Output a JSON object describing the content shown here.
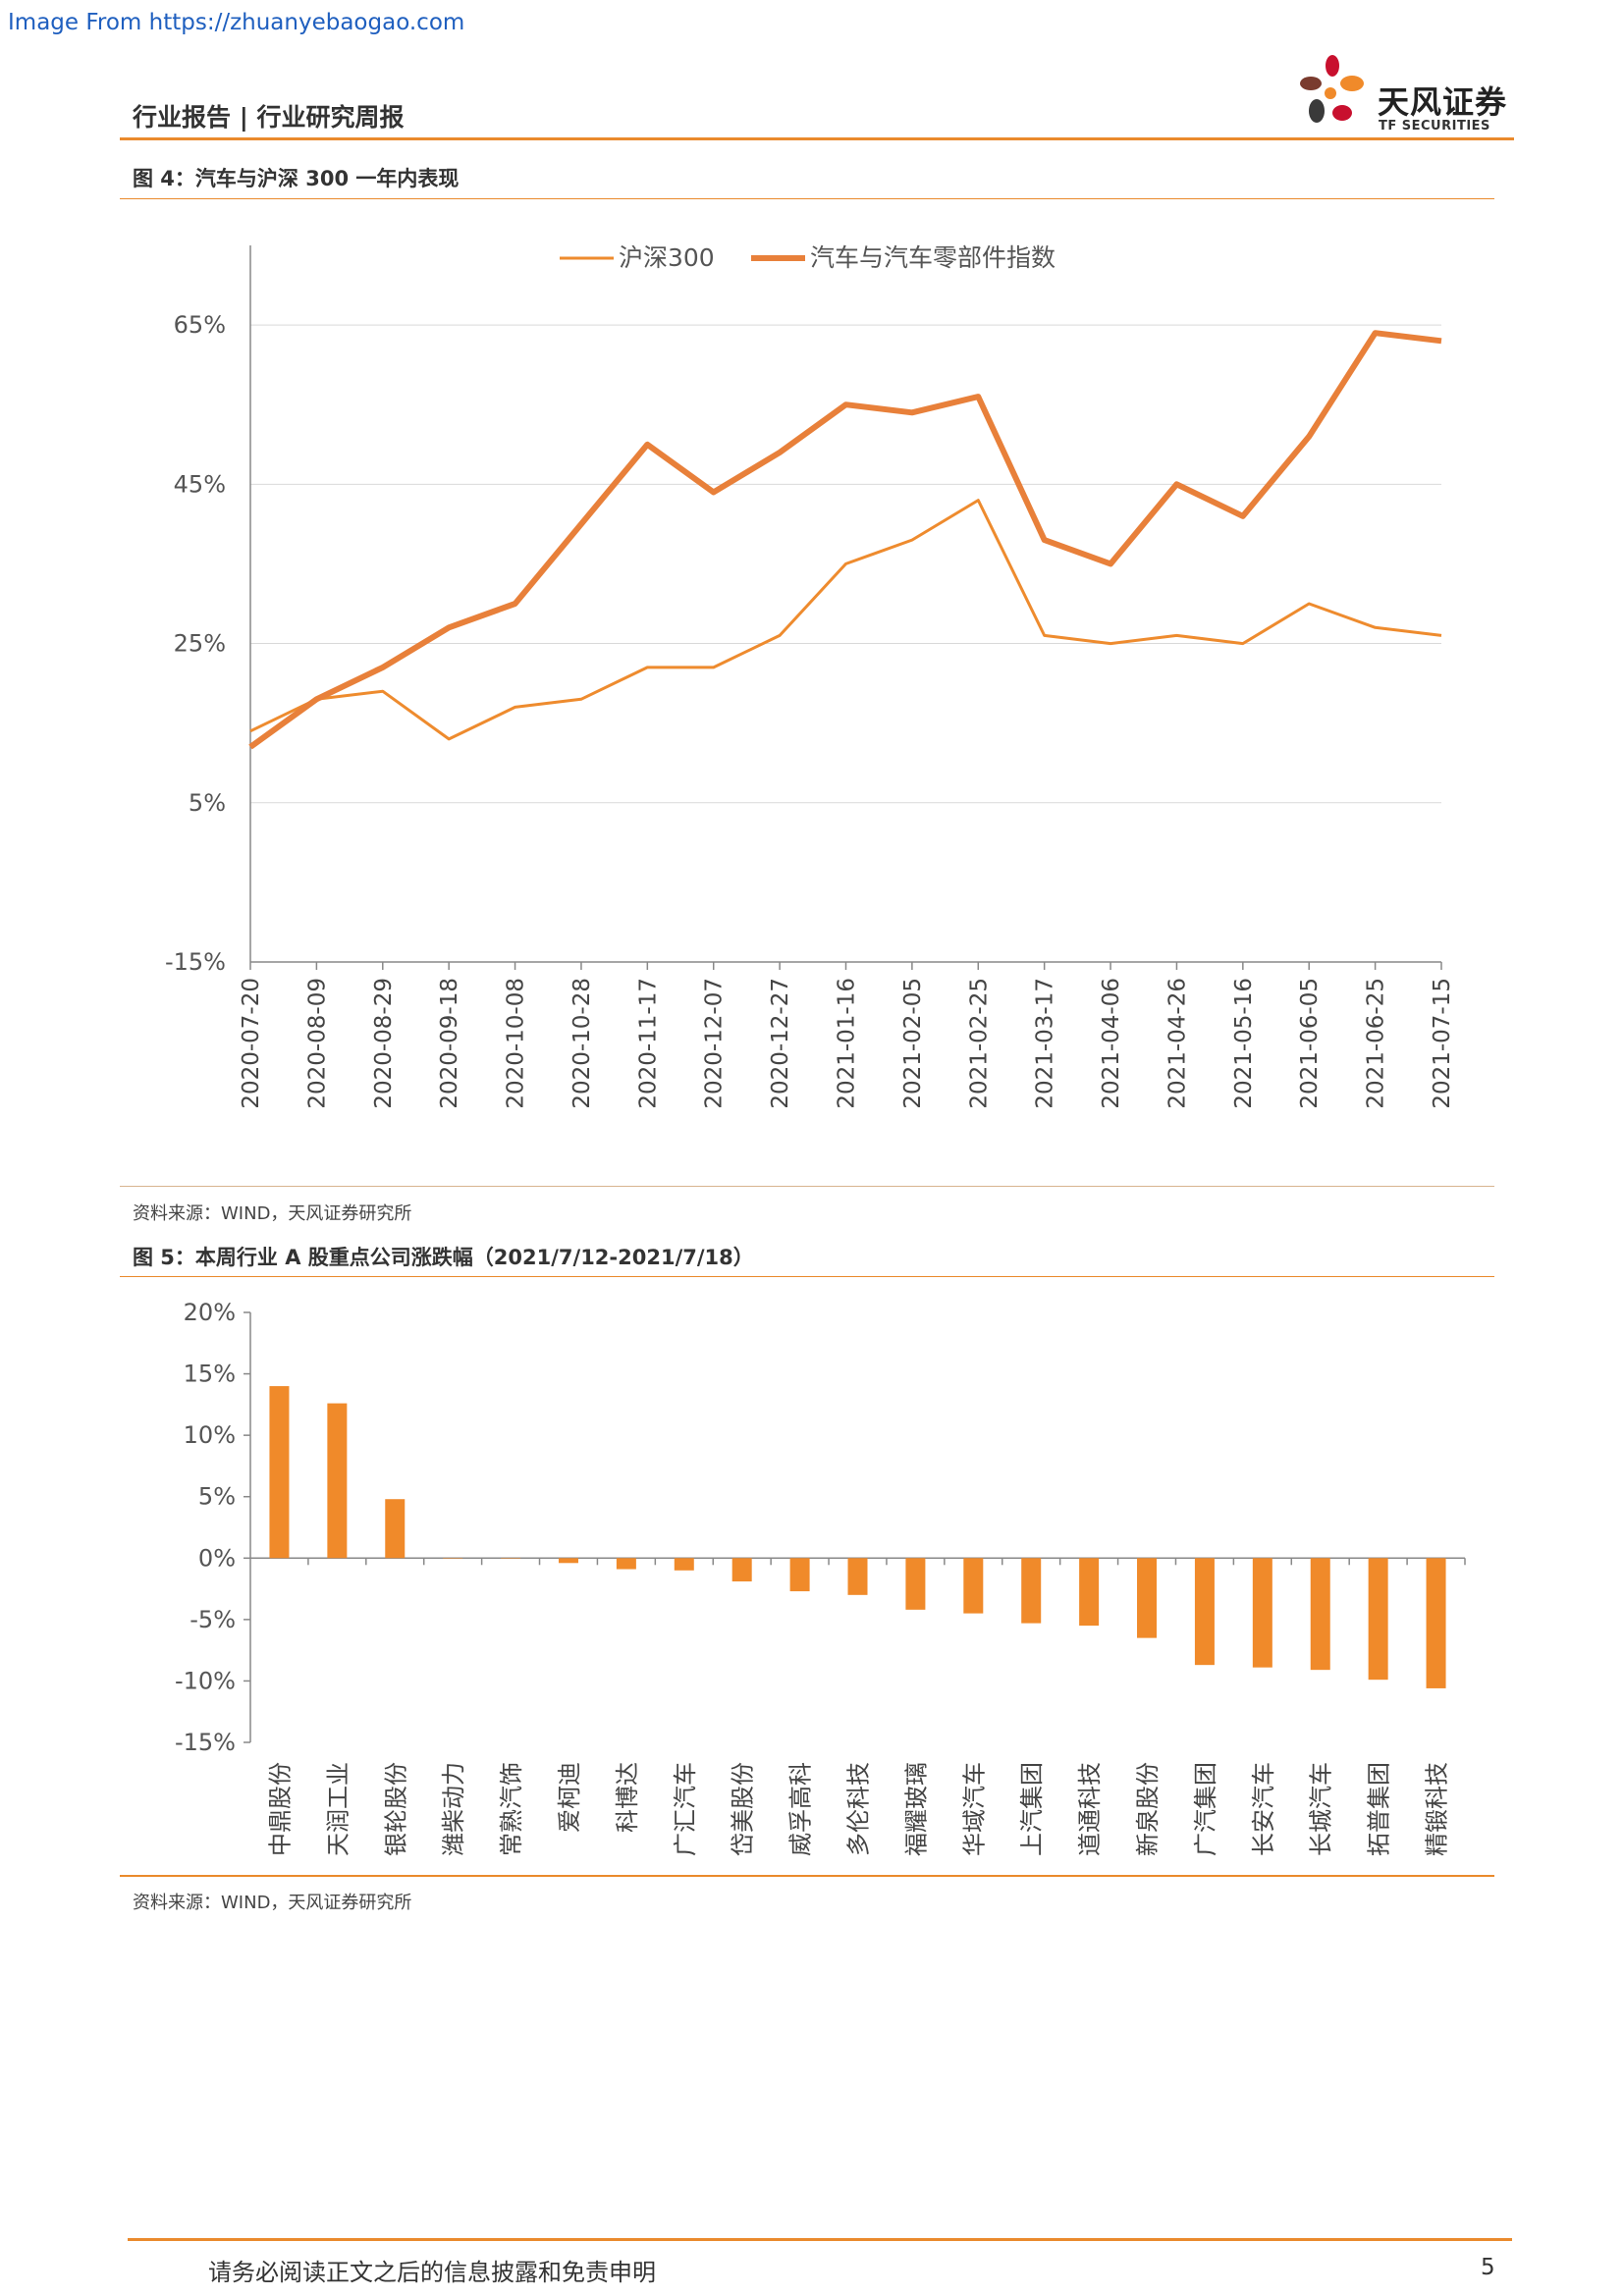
{
  "watermark": "Image From https://zhuanyebaogao.com",
  "header": {
    "title": "行业报告 | 行业研究周报",
    "logo_name": "天风证券",
    "logo_sub": "TF SECURITIES"
  },
  "colors": {
    "accent": "#ea8a2c",
    "bar": "#f08a2a",
    "line_thin": "#ee8b2e",
    "line_thick": "#e8803a"
  },
  "figure4": {
    "title": "图 4：汽车与沪深 300 一年内表现",
    "source": "资料来源：WIND，天风证券研究所"
  },
  "figure5": {
    "title": "图 5：本周行业 A 股重点公司涨跌幅（2021/7/12-2021/7/18）",
    "source": "资料来源：WIND，天风证券研究所"
  },
  "footer": {
    "disclaimer": "请务必阅读正文之后的信息披露和免责申明",
    "page": "5"
  },
  "chart_data": [
    {
      "type": "line",
      "title": "",
      "xlabel": "",
      "ylabel": "",
      "ylim": [
        -15,
        75
      ],
      "yticks": [
        -15,
        5,
        25,
        45,
        65
      ],
      "ytick_labels": [
        "-15%",
        "5%",
        "25%",
        "45%",
        "65%"
      ],
      "x": [
        "2020-07-20",
        "2020-08-09",
        "2020-08-29",
        "2020-09-18",
        "2020-10-08",
        "2020-10-28",
        "2020-11-17",
        "2020-12-07",
        "2020-12-27",
        "2021-01-16",
        "2021-02-05",
        "2021-02-25",
        "2021-03-17",
        "2021-04-06",
        "2021-04-26",
        "2021-05-16",
        "2021-06-05",
        "2021-06-25",
        "2021-07-15"
      ],
      "legend_position": "top",
      "grid": "horizontal",
      "series": [
        {
          "name": "沪深300",
          "values": [
            14,
            18,
            19,
            13,
            17,
            18,
            22,
            22,
            26,
            35,
            38,
            43,
            26,
            25,
            26,
            25,
            30,
            27,
            26
          ]
        },
        {
          "name": "汽车与汽车零部件指数",
          "values": [
            12,
            18,
            22,
            27,
            30,
            40,
            50,
            44,
            49,
            55,
            54,
            56,
            38,
            35,
            45,
            41,
            51,
            64,
            63
          ]
        }
      ]
    },
    {
      "type": "bar",
      "title": "",
      "xlabel": "",
      "ylabel": "",
      "ylim": [
        -15,
        20
      ],
      "yticks": [
        -15,
        -10,
        -5,
        0,
        5,
        10,
        15,
        20
      ],
      "ytick_labels": [
        "-15%",
        "-10%",
        "-5%",
        "0%",
        "5%",
        "10%",
        "15%",
        "20%"
      ],
      "categories": [
        "中鼎股份",
        "天润工业",
        "银轮股份",
        "潍柴动力",
        "常熟汽饰",
        "爱柯迪",
        "科博达",
        "广汇汽车",
        "岱美股份",
        "威孚高科",
        "多伦科技",
        "福耀玻璃",
        "华域汽车",
        "上汽集团",
        "道通科技",
        "新泉股份",
        "广汽集团",
        "长安汽车",
        "长城汽车",
        "拓普集团",
        "精锻科技"
      ],
      "values": [
        14.0,
        12.6,
        4.8,
        0.0,
        0.0,
        -0.4,
        -0.9,
        -1.0,
        -1.9,
        -2.7,
        -3.0,
        -4.2,
        -4.5,
        -5.3,
        -5.5,
        -6.5,
        -8.7,
        -8.9,
        -9.1,
        -9.9,
        -10.6
      ]
    }
  ]
}
